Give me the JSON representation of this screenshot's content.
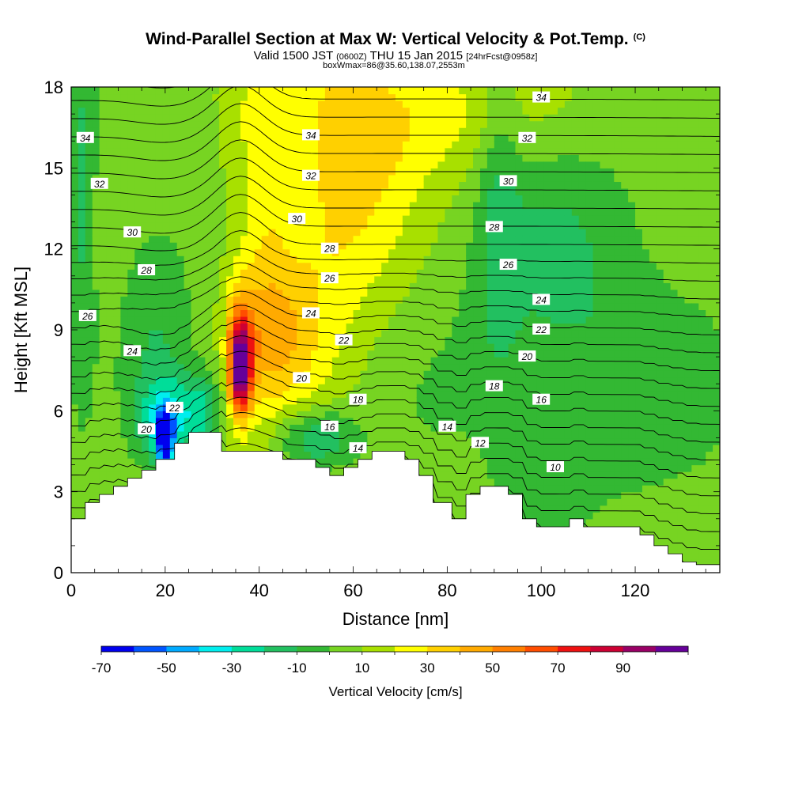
{
  "header": {
    "title": "Wind-Parallel Section at Max W: Vertical Velocity & Pot.Temp.",
    "copyright": "(C)",
    "valid_prefix": "Valid 1500 JST",
    "valid_utc": "(0600Z)",
    "valid_date": "THU 15 Jan 2015",
    "forecast": "[24hrFcst@0958z]",
    "box_info": "boxWmax=86@35.60,138.07,2553m"
  },
  "chart_data": {
    "type": "heatmap",
    "xlabel": "Distance [nm]",
    "ylabel": "Height [Kft MSL]",
    "xlim": [
      0,
      138
    ],
    "ylim": [
      0,
      18
    ],
    "x_ticks": [
      "0",
      "20",
      "40",
      "60",
      "80",
      "100",
      "120"
    ],
    "y_ticks": [
      "0",
      "3",
      "6",
      "9",
      "12",
      "15",
      "18"
    ],
    "colorbar": {
      "label": "Vertical Velocity [cm/s]",
      "tick_labels": [
        "-70",
        "-50",
        "-30",
        "-10",
        "10",
        "30",
        "50",
        "70",
        "90"
      ],
      "bins": [
        -70,
        -60,
        -50,
        -40,
        -30,
        -20,
        -10,
        0,
        10,
        20,
        30,
        40,
        50,
        60,
        70,
        80,
        90,
        100
      ],
      "colors": [
        "#0000ee",
        "#0055ff",
        "#00aaff",
        "#00eeee",
        "#00dd99",
        "#22c060",
        "#33b833",
        "#77d422",
        "#a8e000",
        "#ffff00",
        "#ffd000",
        "#ffaa00",
        "#ff7f00",
        "#ff4d00",
        "#ee1111",
        "#cc0033",
        "#990066",
        "#660099"
      ]
    },
    "terrain_top_kft": {
      "distance_nm": [
        0,
        3,
        3,
        6,
        6,
        9,
        9,
        12,
        12,
        15,
        15,
        18,
        18,
        22,
        22,
        25,
        25,
        32,
        32,
        45,
        45,
        52,
        52,
        55,
        55,
        58,
        58,
        61,
        61,
        64,
        64,
        71,
        71,
        74,
        74,
        77,
        77,
        81,
        81,
        84,
        84,
        87,
        87,
        93,
        93,
        96,
        96,
        99,
        99,
        106,
        106,
        109,
        109,
        121,
        121,
        124,
        124,
        127,
        127,
        130,
        130,
        133,
        133,
        138
      ],
      "height_kft": [
        2.0,
        2.0,
        2.6,
        2.6,
        2.9,
        2.9,
        3.2,
        3.2,
        3.5,
        3.5,
        3.8,
        3.8,
        4.2,
        4.2,
        4.8,
        4.8,
        5.2,
        5.2,
        4.5,
        4.5,
        4.2,
        4.2,
        3.9,
        3.9,
        3.6,
        3.6,
        3.9,
        3.9,
        4.2,
        4.2,
        4.5,
        4.5,
        4.2,
        4.2,
        3.6,
        3.6,
        2.6,
        2.6,
        2.0,
        2.0,
        2.9,
        2.9,
        3.2,
        3.2,
        2.9,
        2.9,
        2.0,
        2.0,
        1.7,
        1.7,
        2.0,
        2.0,
        1.7,
        1.7,
        1.4,
        1.4,
        1.0,
        1.0,
        0.7,
        0.7,
        0.4,
        0.4,
        0.3,
        0.3
      ]
    },
    "potential_temperature_labels": [
      {
        "value": "34",
        "x": 3,
        "y": 16.1
      },
      {
        "value": "32",
        "x": 6,
        "y": 14.4
      },
      {
        "value": "30",
        "x": 13,
        "y": 12.6
      },
      {
        "value": "28",
        "x": 16,
        "y": 11.2
      },
      {
        "value": "26",
        "x": 3.5,
        "y": 9.5
      },
      {
        "value": "24",
        "x": 13,
        "y": 8.2
      },
      {
        "value": "22",
        "x": 22,
        "y": 6.1
      },
      {
        "value": "20",
        "x": 16,
        "y": 5.3
      },
      {
        "value": "34",
        "x": 51,
        "y": 16.2
      },
      {
        "value": "32",
        "x": 51,
        "y": 14.7
      },
      {
        "value": "30",
        "x": 48,
        "y": 13.1
      },
      {
        "value": "28",
        "x": 55,
        "y": 12.0
      },
      {
        "value": "26",
        "x": 55,
        "y": 10.9
      },
      {
        "value": "24",
        "x": 51,
        "y": 9.6
      },
      {
        "value": "22",
        "x": 58,
        "y": 8.6
      },
      {
        "value": "20",
        "x": 49,
        "y": 7.2
      },
      {
        "value": "18",
        "x": 61,
        "y": 6.4
      },
      {
        "value": "16",
        "x": 55,
        "y": 5.4
      },
      {
        "value": "14",
        "x": 61,
        "y": 4.6
      },
      {
        "value": "34",
        "x": 100,
        "y": 17.6
      },
      {
        "value": "32",
        "x": 97,
        "y": 16.1
      },
      {
        "value": "30",
        "x": 93,
        "y": 14.5
      },
      {
        "value": "28",
        "x": 90,
        "y": 12.8
      },
      {
        "value": "26",
        "x": 93,
        "y": 11.4
      },
      {
        "value": "24",
        "x": 100,
        "y": 10.1
      },
      {
        "value": "22",
        "x": 100,
        "y": 9.0
      },
      {
        "value": "20",
        "x": 97,
        "y": 8.0
      },
      {
        "value": "18",
        "x": 90,
        "y": 6.9
      },
      {
        "value": "16",
        "x": 100,
        "y": 6.4
      },
      {
        "value": "14",
        "x": 80,
        "y": 5.4
      },
      {
        "value": "12",
        "x": 87,
        "y": 4.8
      },
      {
        "value": "10",
        "x": 103,
        "y": 3.9
      }
    ]
  }
}
